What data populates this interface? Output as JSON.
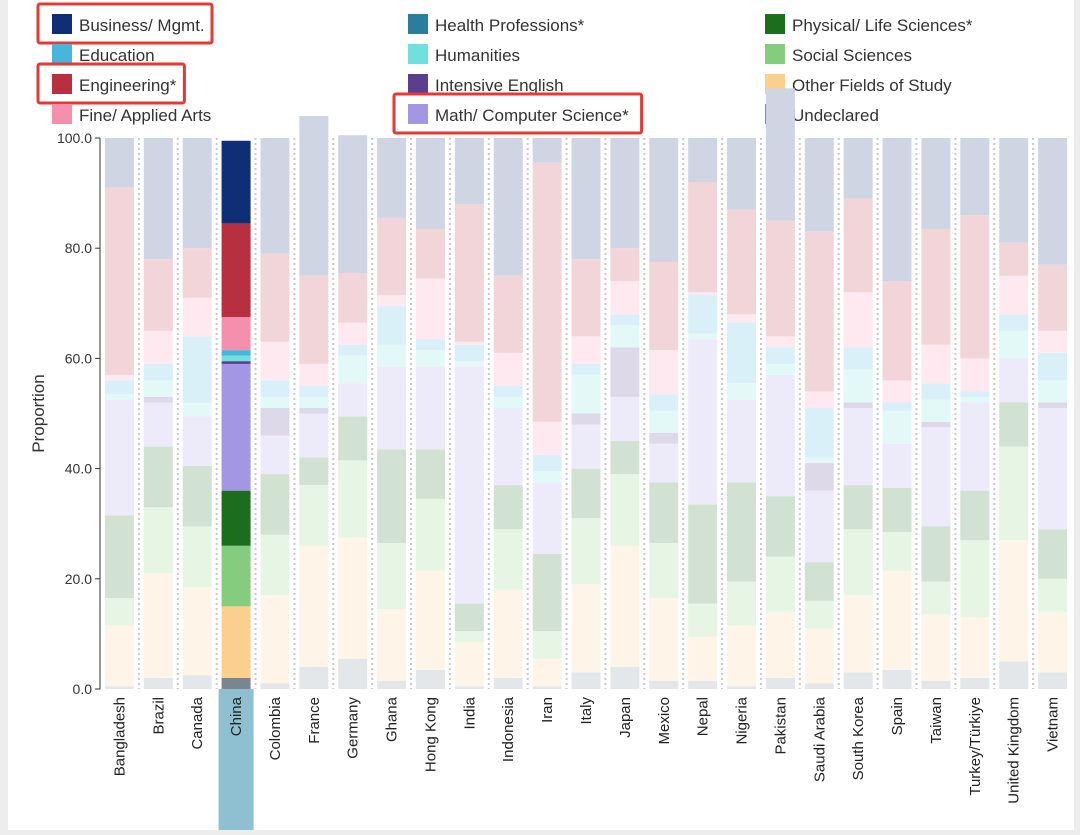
{
  "chart_data": {
    "type": "bar",
    "stacked": true,
    "normalized": true,
    "title": "",
    "xlabel": "",
    "ylabel": "Proportion",
    "ylim": [
      0,
      100
    ],
    "yticks": [
      "0.0",
      "20.0",
      "40.0",
      "60.0",
      "80.0",
      "100.0"
    ],
    "highlighted_category": "China",
    "highlighted_legend": [
      "Business/ Mgmt.",
      "Engineering*",
      "Math/ Computer Science*"
    ],
    "categories": [
      "Bangladesh",
      "Brazil",
      "Canada",
      "China",
      "Colombia",
      "France",
      "Germany",
      "Ghana",
      "Hong Kong",
      "India",
      "Indonesia",
      "Iran",
      "Italy",
      "Japan",
      "Mexico",
      "Nepal",
      "Nigeria",
      "Pakistan",
      "Saudi Arabia",
      "South Korea",
      "Spain",
      "Taiwan",
      "Turkey/Türkiye",
      "United Kingdom",
      "Vietnam"
    ],
    "series": [
      {
        "name": "Undeclared",
        "color": "#7a8590",
        "values": [
          0.5,
          2,
          2.5,
          2,
          1,
          4,
          5.5,
          1.5,
          3.5,
          0.5,
          2,
          0.5,
          3,
          4,
          1.5,
          1.5,
          0.5,
          2,
          1,
          3,
          3.5,
          1.5,
          2,
          5,
          3
        ]
      },
      {
        "name": "Other Fields of Study",
        "color": "#fbcf8e",
        "values": [
          11,
          19,
          16,
          13,
          16,
          22,
          22,
          13,
          18,
          8,
          16,
          5,
          16,
          22,
          15,
          8,
          11,
          12,
          10,
          14,
          18,
          12,
          11,
          22,
          11
        ]
      },
      {
        "name": "Social Sciences",
        "color": "#86cc7e",
        "values": [
          5,
          12,
          11,
          11,
          11,
          11,
          14,
          12,
          13,
          2,
          11,
          5,
          12,
          13,
          10,
          6,
          8,
          10,
          5,
          12,
          7,
          6,
          14,
          17,
          6
        ]
      },
      {
        "name": "Physical/ Life Sciences*",
        "color": "#1d6d1f",
        "values": [
          15,
          11,
          11,
          10,
          11,
          5,
          8,
          17,
          9,
          5,
          8,
          14,
          9,
          6,
          11,
          18,
          18,
          11,
          7,
          8,
          8,
          10,
          9,
          8,
          9
        ]
      },
      {
        "name": "Math/ Computer Science*",
        "color": "#a397e3",
        "values": [
          21,
          8,
          9,
          23,
          7,
          8,
          6,
          15,
          15,
          43,
          14,
          13,
          8,
          8,
          7,
          30,
          15,
          22,
          13,
          14,
          8,
          18,
          16,
          8,
          22
        ]
      },
      {
        "name": "Intensive English",
        "color": "#5a3f91",
        "values": [
          0,
          1,
          0,
          0.5,
          5,
          1,
          0,
          0,
          0,
          0,
          0,
          0,
          2,
          9,
          2,
          0,
          0,
          0,
          5,
          1,
          0,
          1,
          0,
          0,
          1
        ]
      },
      {
        "name": "Humanities",
        "color": "#70e0de",
        "values": [
          1,
          3,
          2.5,
          1,
          2,
          2,
          5,
          4,
          3,
          1,
          2,
          2,
          7,
          4,
          4,
          1,
          3,
          2,
          1,
          6,
          6,
          4,
          1,
          5,
          4
        ]
      },
      {
        "name": "Health Professions*",
        "color": "#2a7d9c",
        "values": [
          0,
          0,
          0,
          0,
          0,
          0,
          0,
          0,
          0,
          0,
          0,
          0,
          0,
          0,
          0,
          0,
          0,
          0,
          0,
          0,
          0,
          0,
          0,
          0,
          0
        ]
      },
      {
        "name": "Education",
        "color": "#46b6db",
        "values": [
          2.5,
          3,
          12,
          1,
          3,
          2,
          2,
          7,
          2,
          3,
          2,
          3,
          2,
          2,
          3,
          7,
          11,
          3,
          9,
          4,
          1.5,
          3,
          1,
          3,
          5
        ]
      },
      {
        "name": "Fine/ Applied Arts",
        "color": "#f48fae",
        "values": [
          1,
          6,
          7,
          6,
          7,
          4,
          4,
          2,
          11,
          0.5,
          6,
          6,
          5,
          6,
          8,
          0.5,
          1.5,
          2,
          3,
          10,
          4,
          7,
          6,
          7,
          4
        ]
      },
      {
        "name": "Engineering*",
        "color": "#b82f40",
        "values": [
          34,
          13,
          9,
          17,
          16,
          16,
          9,
          14,
          9,
          25,
          14,
          47,
          14,
          6,
          16,
          20,
          19,
          21,
          29,
          17,
          18,
          21,
          26,
          6,
          12
        ]
      },
      {
        "name": "Business/ Mgmt.",
        "color": "#0f2e75",
        "values": [
          9,
          22,
          20,
          15,
          21,
          29,
          25,
          14.5,
          16.5,
          12,
          25,
          4.5,
          22,
          20,
          22.5,
          8,
          13,
          24,
          17,
          11,
          26,
          16.5,
          14,
          19,
          23
        ]
      }
    ]
  },
  "legend_order": [
    "Business/ Mgmt.",
    "Health Professions*",
    "Physical/ Life Sciences*",
    "Education",
    "Humanities",
    "Social Sciences",
    "Engineering*",
    "Intensive English",
    "Other Fields of Study",
    "Fine/ Applied Arts",
    "Math/ Computer Science*",
    "Undeclared"
  ],
  "colors": {
    "highlight_box": "#e53935",
    "axis_line": "#333333",
    "selected_category_bg": "#8fc0d1",
    "bar_divider": "#c9c9c9",
    "panel_bg": "#ffffff"
  }
}
